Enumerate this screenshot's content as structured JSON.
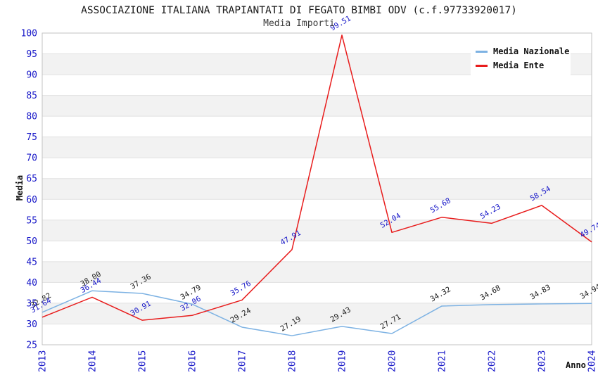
{
  "chart_data": {
    "type": "line",
    "title": "ASSOCIAZIONE ITALIANA TRAPIANTATI DI FEGATO BIMBI ODV (c.f.97733920017)",
    "subtitle": "Media Importi",
    "xlabel": "Anno",
    "ylabel": "Media",
    "ylim": [
      25,
      100
    ],
    "ytick_step": 5,
    "yticks": [
      25,
      30,
      35,
      40,
      45,
      50,
      55,
      60,
      65,
      70,
      75,
      80,
      85,
      90,
      95,
      100
    ],
    "grid": "horizontal-only",
    "legend_position": "top-right",
    "categories": [
      "2013",
      "2014",
      "2015",
      "2016",
      "2017",
      "2018",
      "2019",
      "2020",
      "2021",
      "2022",
      "2023",
      "2024"
    ],
    "series": [
      {
        "name": "Media Nazionale",
        "color": "#7db2e3",
        "label_color": "#1a1a1a",
        "values": [
          32.82,
          38.0,
          37.36,
          34.79,
          29.24,
          27.19,
          29.43,
          27.71,
          34.32,
          34.68,
          34.83,
          34.94
        ]
      },
      {
        "name": "Media Ente",
        "color": "#e81c1c",
        "label_color": "#1616c8",
        "values": [
          31.64,
          36.44,
          30.91,
          32.06,
          35.76,
          47.91,
          99.51,
          52.04,
          55.68,
          54.23,
          58.54,
          49.74
        ]
      }
    ],
    "colors": {
      "axis_tick": "#1616c8",
      "band_fill": "#f2f2f2",
      "gridline": "#e1e1e1",
      "plot_border": "#c3c3c3",
      "background": "#ffffff"
    }
  }
}
